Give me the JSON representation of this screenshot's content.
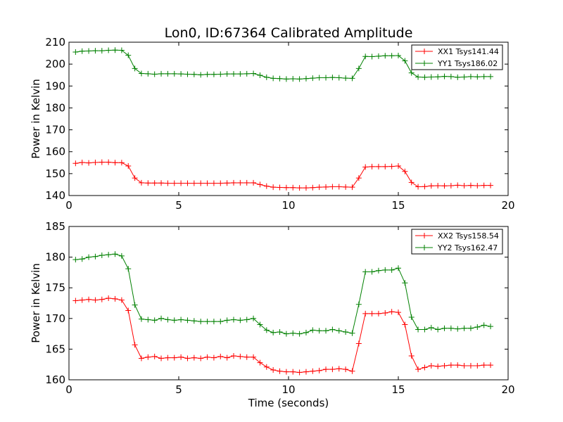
{
  "figure": {
    "title": "Lon0, ID:67364 Calibrated Amplitude"
  },
  "chart_data": [
    {
      "type": "line",
      "title": "Lon0, ID:67364 Calibrated Amplitude",
      "xlabel": "",
      "ylabel": "Power in Kelvin",
      "xlim": [
        0,
        20
      ],
      "ylim": [
        140,
        210
      ],
      "xticks": [
        0,
        5,
        10,
        15,
        20
      ],
      "yticks": [
        140,
        150,
        160,
        170,
        180,
        190,
        200,
        210
      ],
      "xtick_labels": [
        "0",
        "5",
        "10",
        "15",
        "20"
      ],
      "ytick_labels": [
        "140",
        "150",
        "160",
        "170",
        "180",
        "190",
        "200",
        "210"
      ],
      "grid": false,
      "legend_position": "top-right",
      "marker": "+",
      "x": [
        0.3,
        0.6,
        0.9,
        1.2,
        1.5,
        1.8,
        2.1,
        2.4,
        2.7,
        3.0,
        3.3,
        3.6,
        3.9,
        4.2,
        4.5,
        4.8,
        5.1,
        5.4,
        5.7,
        6.0,
        6.3,
        6.6,
        6.9,
        7.2,
        7.5,
        7.8,
        8.1,
        8.4,
        8.7,
        9.0,
        9.3,
        9.6,
        9.9,
        10.2,
        10.5,
        10.8,
        11.1,
        11.4,
        11.7,
        12.0,
        12.3,
        12.6,
        12.9,
        13.2,
        13.5,
        13.8,
        14.1,
        14.4,
        14.7,
        15.0,
        15.3,
        15.6,
        15.9,
        16.2,
        16.5,
        16.8,
        17.1,
        17.4,
        17.7,
        18.0,
        18.3,
        18.6,
        18.9,
        19.2
      ],
      "series": [
        {
          "name": "XX1 Tsys141.44",
          "color": "#ff0000",
          "values": [
            154.7,
            155.1,
            154.9,
            155.1,
            155.2,
            155.2,
            155.0,
            155.0,
            153.5,
            148.0,
            145.8,
            145.7,
            145.7,
            145.7,
            145.6,
            145.6,
            145.6,
            145.6,
            145.6,
            145.6,
            145.6,
            145.6,
            145.6,
            145.7,
            145.8,
            145.8,
            145.8,
            145.8,
            145.0,
            144.3,
            143.8,
            143.7,
            143.6,
            143.6,
            143.5,
            143.5,
            143.6,
            143.8,
            143.9,
            144.0,
            144.0,
            143.9,
            143.8,
            148.0,
            153.0,
            153.2,
            153.2,
            153.2,
            153.3,
            153.5,
            151.0,
            146.0,
            144.0,
            144.1,
            144.4,
            144.5,
            144.4,
            144.5,
            144.7,
            144.5,
            144.6,
            144.5,
            144.6,
            144.6
          ]
        },
        {
          "name": "YY1 Tsys186.02",
          "color": "#008000",
          "values": [
            205.5,
            205.9,
            206.0,
            206.1,
            206.1,
            206.3,
            206.4,
            206.3,
            204.0,
            198.0,
            195.7,
            195.6,
            195.4,
            195.6,
            195.6,
            195.6,
            195.5,
            195.4,
            195.3,
            195.1,
            195.3,
            195.3,
            195.4,
            195.5,
            195.5,
            195.5,
            195.6,
            195.7,
            194.9,
            194.0,
            193.5,
            193.4,
            193.2,
            193.3,
            193.2,
            193.4,
            193.6,
            193.8,
            193.8,
            193.9,
            193.8,
            193.6,
            193.5,
            198.0,
            203.5,
            203.4,
            203.6,
            203.8,
            203.8,
            203.9,
            201.5,
            196.0,
            194.1,
            194.0,
            194.1,
            194.2,
            194.4,
            194.3,
            194.0,
            194.1,
            194.3,
            194.2,
            194.3,
            194.3
          ]
        }
      ]
    },
    {
      "type": "line",
      "title": "",
      "xlabel": "Time (seconds)",
      "ylabel": "Power in Kelvin",
      "xlim": [
        0,
        20
      ],
      "ylim": [
        160,
        185
      ],
      "xticks": [
        0,
        5,
        10,
        15,
        20
      ],
      "yticks": [
        160,
        165,
        170,
        175,
        180,
        185
      ],
      "xtick_labels": [
        "0",
        "5",
        "10",
        "15",
        "20"
      ],
      "ytick_labels": [
        "160",
        "165",
        "170",
        "175",
        "180",
        "185"
      ],
      "grid": false,
      "legend_position": "top-right",
      "marker": "+",
      "x": [
        0.3,
        0.6,
        0.9,
        1.2,
        1.5,
        1.8,
        2.1,
        2.4,
        2.7,
        3.0,
        3.3,
        3.6,
        3.9,
        4.2,
        4.5,
        4.8,
        5.1,
        5.4,
        5.7,
        6.0,
        6.3,
        6.6,
        6.9,
        7.2,
        7.5,
        7.8,
        8.1,
        8.4,
        8.7,
        9.0,
        9.3,
        9.6,
        9.9,
        10.2,
        10.5,
        10.8,
        11.1,
        11.4,
        11.7,
        12.0,
        12.3,
        12.6,
        12.9,
        13.2,
        13.5,
        13.8,
        14.1,
        14.4,
        14.7,
        15.0,
        15.3,
        15.6,
        15.9,
        16.2,
        16.5,
        16.8,
        17.1,
        17.4,
        17.7,
        18.0,
        18.3,
        18.6,
        18.9,
        19.2
      ],
      "series": [
        {
          "name": "XX2 Tsys158.54",
          "color": "#ff0000",
          "values": [
            172.9,
            173.0,
            173.1,
            173.0,
            173.1,
            173.3,
            173.2,
            173.0,
            171.3,
            165.7,
            163.5,
            163.7,
            163.8,
            163.5,
            163.6,
            163.6,
            163.7,
            163.5,
            163.6,
            163.5,
            163.7,
            163.6,
            163.8,
            163.6,
            163.9,
            163.8,
            163.7,
            163.7,
            162.8,
            162.1,
            161.6,
            161.4,
            161.3,
            161.3,
            161.2,
            161.3,
            161.4,
            161.5,
            161.7,
            161.7,
            161.8,
            161.7,
            161.4,
            165.9,
            170.8,
            170.8,
            170.8,
            170.9,
            171.1,
            171.0,
            169.0,
            163.9,
            161.7,
            162.0,
            162.3,
            162.2,
            162.3,
            162.4,
            162.4,
            162.3,
            162.3,
            162.3,
            162.4,
            162.4
          ]
        },
        {
          "name": "YY2 Tsys162.47",
          "color": "#008000",
          "values": [
            179.6,
            179.7,
            180.0,
            180.1,
            180.3,
            180.4,
            180.5,
            180.2,
            178.1,
            172.2,
            169.9,
            169.8,
            169.7,
            170.0,
            169.8,
            169.7,
            169.8,
            169.7,
            169.6,
            169.5,
            169.5,
            169.5,
            169.5,
            169.7,
            169.8,
            169.7,
            169.8,
            170.0,
            169.0,
            168.1,
            167.7,
            167.8,
            167.5,
            167.6,
            167.5,
            167.7,
            168.1,
            168.0,
            168.0,
            168.2,
            168.0,
            167.8,
            167.6,
            172.3,
            177.6,
            177.6,
            177.8,
            177.9,
            177.9,
            178.2,
            175.8,
            170.2,
            168.2,
            168.2,
            168.5,
            168.2,
            168.4,
            168.4,
            168.3,
            168.4,
            168.4,
            168.6,
            168.9,
            168.7
          ]
        }
      ]
    }
  ]
}
